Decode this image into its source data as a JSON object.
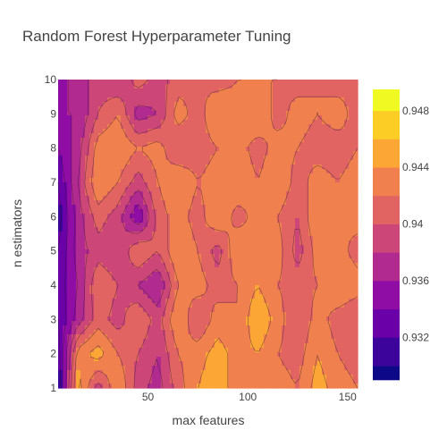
{
  "chart_data": {
    "type": "contour",
    "title": "Random Forest Hyperparameter Tuning",
    "xlabel": "max features",
    "ylabel": "n estimators",
    "xlim": [
      5,
      155
    ],
    "ylim": [
      1,
      10
    ],
    "x_ticks": [
      50,
      100,
      150
    ],
    "y_ticks": [
      1,
      2,
      3,
      4,
      5,
      6,
      7,
      8,
      9,
      10
    ],
    "colorbar": {
      "range": [
        0.929,
        0.9495
      ],
      "levels": [
        0.929,
        0.93,
        0.932,
        0.934,
        0.936,
        0.938,
        0.94,
        0.942,
        0.944,
        0.946,
        0.948,
        0.9495
      ],
      "colors": [
        "#0d0887",
        "#3c049b",
        "#6a00a8",
        "#8f0da4",
        "#b12a90",
        "#cc4778",
        "#e16462",
        "#f0804d",
        "#fca636",
        "#fcce25",
        "#f0f921"
      ],
      "tick_labels": [
        "0.932",
        "0.936",
        "0.94",
        "0.944",
        "0.948"
      ],
      "tick_values": [
        0.932,
        0.936,
        0.94,
        0.944,
        0.948
      ]
    },
    "x": [
      5,
      15,
      25,
      35,
      45,
      55,
      65,
      75,
      85,
      95,
      105,
      115,
      125,
      135,
      145,
      155
    ],
    "y": [
      1,
      2,
      3,
      4,
      5,
      6,
      7,
      8,
      9,
      10
    ],
    "z": [
      [
        0.93,
        0.945,
        0.939,
        0.944,
        0.939,
        0.937,
        0.941,
        0.944,
        0.946,
        0.942,
        0.944,
        0.943,
        0.942,
        0.945,
        0.943,
        0.942
      ],
      [
        0.931,
        0.943,
        0.945,
        0.942,
        0.94,
        0.938,
        0.942,
        0.943,
        0.945,
        0.943,
        0.944,
        0.942,
        0.941,
        0.944,
        0.942,
        0.941
      ],
      [
        0.932,
        0.937,
        0.941,
        0.939,
        0.942,
        0.939,
        0.944,
        0.94,
        0.943,
        0.942,
        0.946,
        0.943,
        0.94,
        0.943,
        0.941,
        0.94
      ],
      [
        0.933,
        0.936,
        0.942,
        0.94,
        0.938,
        0.936,
        0.942,
        0.943,
        0.941,
        0.942,
        0.944,
        0.942,
        0.941,
        0.942,
        0.944,
        0.943
      ],
      [
        0.932,
        0.937,
        0.939,
        0.938,
        0.942,
        0.94,
        0.944,
        0.942,
        0.939,
        0.944,
        0.942,
        0.943,
        0.939,
        0.943,
        0.943,
        0.941
      ],
      [
        0.931,
        0.937,
        0.941,
        0.939,
        0.934,
        0.941,
        0.943,
        0.941,
        0.944,
        0.941,
        0.943,
        0.942,
        0.94,
        0.944,
        0.942,
        0.943
      ],
      [
        0.932,
        0.938,
        0.944,
        0.942,
        0.939,
        0.942,
        0.944,
        0.942,
        0.943,
        0.944,
        0.942,
        0.944,
        0.941,
        0.943,
        0.942,
        0.943
      ],
      [
        0.934,
        0.937,
        0.943,
        0.944,
        0.942,
        0.943,
        0.94,
        0.941,
        0.942,
        0.943,
        0.941,
        0.943,
        0.942,
        0.941,
        0.941,
        0.942
      ],
      [
        0.936,
        0.936,
        0.94,
        0.942,
        0.937,
        0.938,
        0.943,
        0.941,
        0.944,
        0.943,
        0.944,
        0.941,
        0.943,
        0.942,
        0.943,
        0.941
      ],
      [
        0.935,
        0.937,
        0.939,
        0.938,
        0.941,
        0.939,
        0.941,
        0.942,
        0.941,
        0.942,
        0.942,
        0.942,
        0.941,
        0.942,
        0.941,
        0.942
      ]
    ]
  }
}
